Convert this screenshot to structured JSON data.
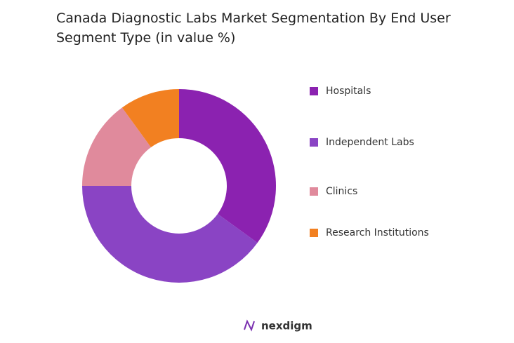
{
  "chart_data": {
    "type": "donut",
    "title": "Canada Diagnostic Labs Market Segmentation By End User Segment Type (in value %)",
    "categories": [
      "Hospitals",
      "Independent Labs",
      "Clinics",
      "Research Institutions"
    ],
    "values": [
      35,
      40,
      15,
      10
    ],
    "colors": [
      "#8b22b0",
      "#8a44c4",
      "#e08a9c",
      "#f28021"
    ],
    "legend": "right"
  },
  "footer": {
    "brand": "nexdigm"
  }
}
